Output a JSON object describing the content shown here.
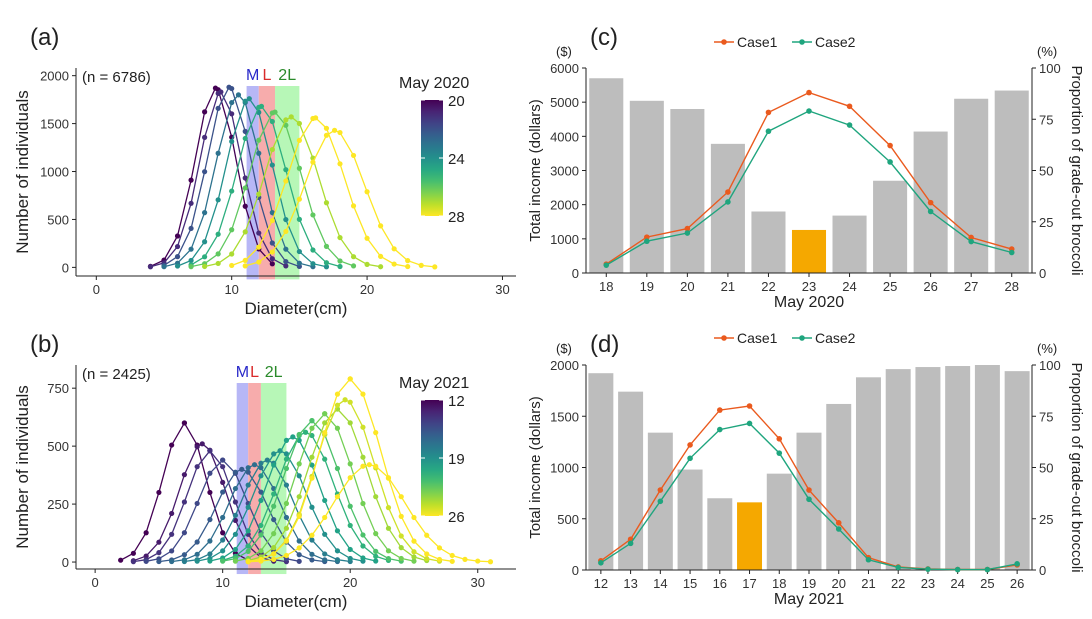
{
  "axis_labels": {
    "number_of_individuals": "Number of individuals",
    "diameter": "Diameter(cm)",
    "total_income": "Total income (dollars)",
    "proportion": "Proportion of grade-out broccoli",
    "dollar_unit": "($)",
    "percent_unit": "(%)"
  },
  "grade_bands": [
    {
      "label": "M",
      "color": "#2929c9",
      "fill": "#b3b3f5"
    },
    {
      "label": "L",
      "color": "#d92b2b",
      "fill": "#f7a8a8"
    },
    {
      "label": "2L",
      "color": "#2a8a2a",
      "fill": "#b3f7b3"
    }
  ],
  "legend_cases": [
    {
      "name": "Case1",
      "color": "#ea5a1e"
    },
    {
      "name": "Case2",
      "color": "#1fa57e"
    }
  ],
  "chart_data": [
    {
      "panel": "(a)",
      "type": "line",
      "note": "(n = 6786)",
      "xlabel": "Diameter(cm)",
      "ylabel": "Number of individuals",
      "xlim": [
        -1.5,
        31
      ],
      "ylim": [
        -90,
        2080
      ],
      "xticks": [
        0,
        10,
        20,
        30
      ],
      "yticks": [
        0,
        500,
        1000,
        1500,
        2000
      ],
      "grade_bands": [
        [
          11.1,
          12
        ],
        [
          12,
          13.2
        ],
        [
          13.2,
          15
        ]
      ],
      "colorbar": {
        "title": "May 2020",
        "min": 20,
        "max": 28,
        "ticks": [
          20,
          24,
          28
        ]
      },
      "grid": false,
      "series": [
        {
          "day": 20,
          "peak": 8.8,
          "height": 1870,
          "sigma": 1.5
        },
        {
          "day": 21,
          "peak": 9.2,
          "height": 1830,
          "sigma": 1.55
        },
        {
          "day": 22,
          "peak": 9.8,
          "height": 1880,
          "sigma": 1.6
        },
        {
          "day": 23,
          "peak": 10.5,
          "height": 1800,
          "sigma": 1.65
        },
        {
          "day": 24,
          "peak": 11.3,
          "height": 1760,
          "sigma": 1.7
        },
        {
          "day": 25,
          "peak": 12.2,
          "height": 1680,
          "sigma": 1.8
        },
        {
          "day": 26,
          "peak": 13.2,
          "height": 1620,
          "sigma": 1.9
        },
        {
          "day": 27,
          "peak": 14.4,
          "height": 1570,
          "sigma": 2.0
        },
        {
          "day": 28,
          "peak": 16.2,
          "height": 1560,
          "sigma": 2.1
        },
        {
          "day": 28,
          "peak": 17.6,
          "height": 1430,
          "sigma": 2.2
        }
      ]
    },
    {
      "panel": "(b)",
      "type": "line",
      "note": "(n = 2425)",
      "xlabel": "Diameter(cm)",
      "ylabel": "Number of individuals",
      "xlim": [
        -1.5,
        33
      ],
      "ylim": [
        -30,
        850
      ],
      "xticks": [
        0,
        10,
        20,
        30
      ],
      "yticks": [
        0,
        250,
        500,
        750
      ],
      "grade_bands": [
        [
          11.1,
          12
        ],
        [
          12,
          13
        ],
        [
          13,
          15
        ]
      ],
      "colorbar": {
        "title": "May 2021",
        "min": 12,
        "max": 26,
        "ticks": [
          12,
          19,
          26
        ]
      },
      "grid": false,
      "series": [
        {
          "day": 12,
          "peak": 7,
          "height": 600,
          "sigma": 1.7
        },
        {
          "day": 13,
          "peak": 8.4,
          "height": 510,
          "sigma": 1.8
        },
        {
          "day": 14,
          "peak": 9,
          "height": 480,
          "sigma": 1.8
        },
        {
          "day": 15,
          "peak": 10,
          "height": 440,
          "sigma": 1.9
        },
        {
          "day": 16,
          "peak": 11.5,
          "height": 400,
          "sigma": 2.0
        },
        {
          "day": 17,
          "peak": 12.5,
          "height": 420,
          "sigma": 2.0
        },
        {
          "day": 18,
          "peak": 13.5,
          "height": 440,
          "sigma": 2.0
        },
        {
          "day": 19,
          "peak": 14.5,
          "height": 480,
          "sigma": 2.1
        },
        {
          "day": 20,
          "peak": 15.5,
          "height": 540,
          "sigma": 2.1
        },
        {
          "day": 21,
          "peak": 16.5,
          "height": 560,
          "sigma": 2.2
        },
        {
          "day": 22,
          "peak": 17,
          "height": 610,
          "sigma": 2.2
        },
        {
          "day": 23,
          "peak": 18,
          "height": 640,
          "sigma": 2.2
        },
        {
          "day": 24,
          "peak": 19,
          "height": 660,
          "sigma": 2.3
        },
        {
          "day": 25,
          "peak": 19.6,
          "height": 700,
          "sigma": 2.3
        },
        {
          "day": 26,
          "peak": 20,
          "height": 790,
          "sigma": 2.4
        },
        {
          "day": 26,
          "peak": 21.5,
          "height": 420,
          "sigma": 2.8
        }
      ]
    },
    {
      "panel": "(c)",
      "type": "bar",
      "xlabel": "May 2020",
      "ylabel": "Total income (dollars)",
      "ylabel_right": "Proportion of grade-out broccoli",
      "ylim": [
        0,
        6000
      ],
      "ylim_right": [
        0,
        100
      ],
      "yticks": [
        0,
        1000,
        2000,
        3000,
        4000,
        5000,
        6000
      ],
      "yticks_right": [
        0,
        25,
        50,
        75,
        100
      ],
      "categories": [
        "18",
        "19",
        "20",
        "21",
        "22",
        "23",
        "24",
        "25",
        "26",
        "27",
        "28"
      ],
      "highlight": "23",
      "bar_color": "#bdbdbd",
      "highlight_color": "#f5a800",
      "bar_values_percent": [
        95,
        84,
        80,
        63,
        30,
        21,
        28,
        45,
        69,
        85,
        89
      ],
      "series": [
        {
          "name": "Case1",
          "values": [
            260,
            1050,
            1300,
            2370,
            4700,
            5280,
            4880,
            3730,
            2060,
            1040,
            700
          ]
        },
        {
          "name": "Case2",
          "values": [
            230,
            930,
            1170,
            2080,
            4150,
            4740,
            4330,
            3250,
            1800,
            920,
            600
          ]
        }
      ],
      "grid": false
    },
    {
      "panel": "(d)",
      "type": "bar",
      "xlabel": "May 2021",
      "ylabel": "Total income (dollars)",
      "ylabel_right": "Proportion of grade-out broccoli",
      "ylim": [
        0,
        2000
      ],
      "ylim_right": [
        0,
        100
      ],
      "yticks": [
        0,
        500,
        1000,
        1500,
        2000
      ],
      "yticks_right": [
        0,
        25,
        50,
        75,
        100
      ],
      "categories": [
        "12",
        "13",
        "14",
        "15",
        "16",
        "17",
        "18",
        "19",
        "20",
        "21",
        "22",
        "23",
        "24",
        "25",
        "26"
      ],
      "highlight": "17",
      "bar_color": "#bdbdbd",
      "highlight_color": "#f5a800",
      "bar_values_percent": [
        96,
        87,
        67,
        49,
        35,
        33,
        47,
        67,
        81,
        94,
        98,
        99,
        99.5,
        100,
        97
      ],
      "series": [
        {
          "name": "Case1",
          "values": [
            90,
            300,
            780,
            1220,
            1560,
            1600,
            1280,
            780,
            460,
            120,
            30,
            10,
            5,
            5,
            50
          ]
        },
        {
          "name": "Case2",
          "values": [
            70,
            260,
            670,
            1090,
            1370,
            1430,
            1140,
            690,
            400,
            100,
            25,
            8,
            4,
            4,
            60
          ]
        }
      ],
      "grid": false
    }
  ]
}
